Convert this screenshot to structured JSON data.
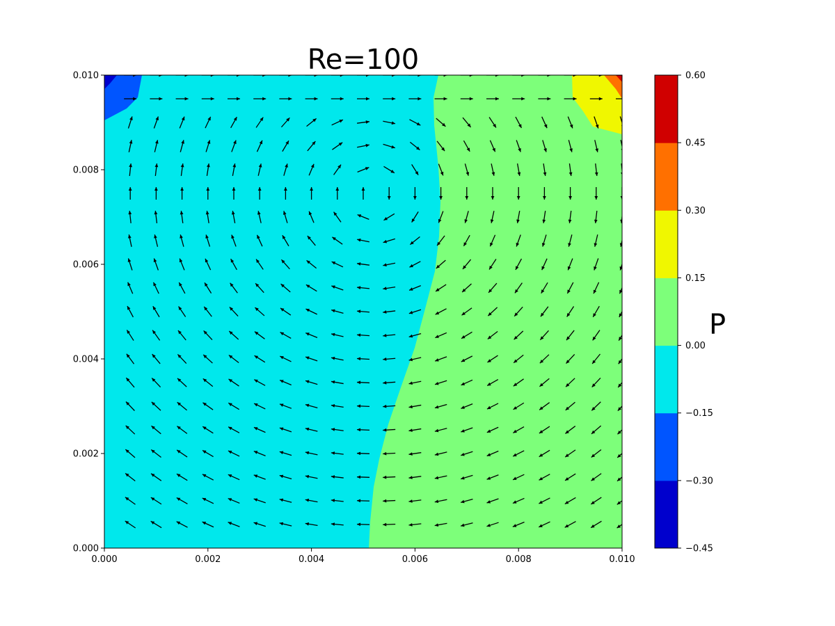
{
  "chart_data": {
    "type": "contour",
    "title": "Re=100",
    "colorbar_label": "P",
    "xlim": [
      0,
      0.01
    ],
    "ylim": [
      0,
      0.01
    ],
    "x_ticks": [
      "0.000",
      "0.002",
      "0.004",
      "0.006",
      "0.008",
      "0.010"
    ],
    "y_ticks": [
      "0.000",
      "0.002",
      "0.004",
      "0.006",
      "0.008",
      "0.010"
    ],
    "x_tick_values": [
      0,
      0.002,
      0.004,
      0.006,
      0.008,
      0.01
    ],
    "y_tick_values": [
      0,
      0.002,
      0.004,
      0.006,
      0.008,
      0.01
    ],
    "colorbar_ticks": [
      "−0.45",
      "−0.30",
      "−0.15",
      "0.00",
      "0.15",
      "0.30",
      "0.45",
      "0.60"
    ],
    "levels": [
      -0.45,
      -0.3,
      -0.15,
      0.0,
      0.15,
      0.3,
      0.45,
      0.6
    ],
    "level_colors": [
      "#0000cd",
      "#0055ff",
      "#00e8ec",
      "#7dff7a",
      "#f0f700",
      "#ff7000",
      "#d00000"
    ],
    "quiver": "velocity field vectors, clockwise recirculation vortex centered near (0.0052, 0.0075)",
    "grid": false
  }
}
